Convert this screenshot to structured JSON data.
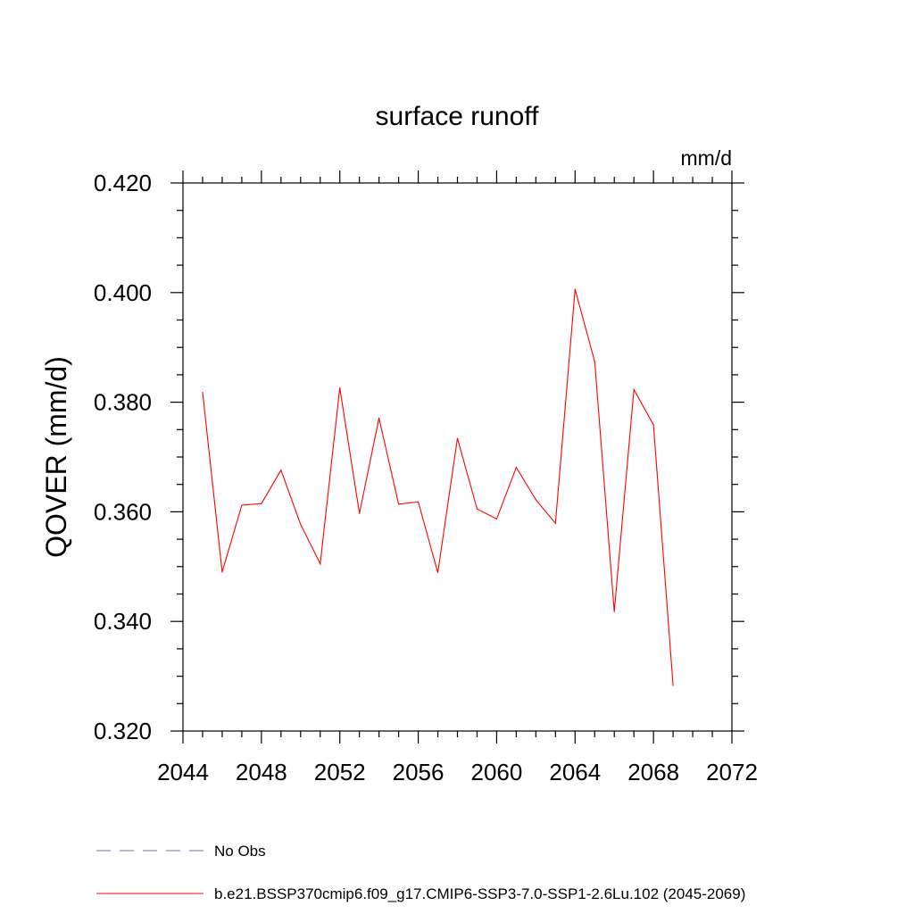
{
  "chart_data": {
    "type": "line",
    "title": "surface runoff",
    "units_label": "mm/d",
    "ylabel": "QOVER  (mm/d)",
    "xlabel": "",
    "xlim": [
      2044,
      2072
    ],
    "ylim": [
      0.32,
      0.42
    ],
    "x_ticks": [
      "2044",
      "2048",
      "2052",
      "2056",
      "2060",
      "2064",
      "2068",
      "2072"
    ],
    "y_ticks": [
      "0.320",
      "0.340",
      "0.360",
      "0.380",
      "0.400",
      "0.420"
    ],
    "grid": false,
    "series": [
      {
        "name": "b.e21.BSSP370cmip6.f09_g17.CMIP6-SSP3-7.0-SSP1-2.6Lu.102 (2045-2069)",
        "color": "#ff0000",
        "x": [
          2045,
          2046,
          2047,
          2048,
          2049,
          2050,
          2051,
          2052,
          2053,
          2054,
          2055,
          2056,
          2057,
          2058,
          2059,
          2060,
          2061,
          2062,
          2063,
          2064,
          2065,
          2066,
          2067,
          2068,
          2069
        ],
        "y": [
          0.3818,
          0.349,
          0.3612,
          0.3615,
          0.3676,
          0.3577,
          0.3505,
          0.3826,
          0.3597,
          0.3771,
          0.3614,
          0.3618,
          0.3489,
          0.3734,
          0.3605,
          0.3587,
          0.3681,
          0.3622,
          0.3579,
          0.4006,
          0.3874,
          0.3418,
          0.3823,
          0.3759,
          0.3283
        ]
      }
    ],
    "legend": [
      {
        "label": "No Obs",
        "style": "dashed",
        "color": "#7b6fb6"
      },
      {
        "label": "b.e21.BSSP370cmip6.f09_g17.CMIP6-SSP3-7.0-SSP1-2.6Lu.102 (2045-2069)",
        "style": "solid",
        "color": "#ff0000"
      }
    ],
    "legend_position": "bottom"
  }
}
